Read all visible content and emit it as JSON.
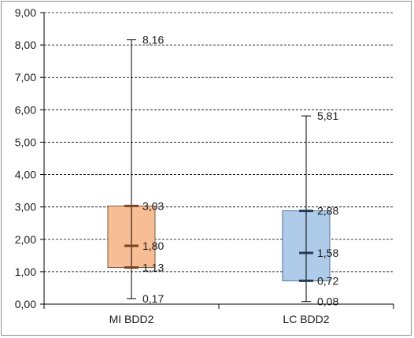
{
  "chart_data": {
    "type": "box",
    "title": "",
    "xlabel": "",
    "ylabel": "",
    "ylim": [
      0,
      9
    ],
    "y_ticks": [
      "0,00",
      "1,00",
      "2,00",
      "3,00",
      "4,00",
      "5,00",
      "6,00",
      "7,00",
      "8,00",
      "9,00"
    ],
    "grid": true,
    "legend": "none",
    "categories": [
      "MI BDD2",
      "LC BDD2"
    ],
    "series": [
      {
        "category": "MI BDD2",
        "min": 0.17,
        "q1": 1.13,
        "median": 1.8,
        "q3": 3.03,
        "max": 8.16,
        "labels": {
          "min": "0,17",
          "q1": "1,13",
          "median": "1,80",
          "q3": "3,03",
          "max": "8,16"
        },
        "fill": "#f7be95",
        "stroke": "#7a5a44",
        "marker": "#7a4422"
      },
      {
        "category": "LC BDD2",
        "min": 0.08,
        "q1": 0.72,
        "median": 1.58,
        "q3": 2.88,
        "max": 5.81,
        "labels": {
          "min": "0,08",
          "q1": "0,72",
          "median": "1,58",
          "q3": "2,88",
          "max": "5,81"
        },
        "fill": "#aecbea",
        "stroke": "#4f6f90",
        "marker": "#243b55"
      }
    ]
  }
}
